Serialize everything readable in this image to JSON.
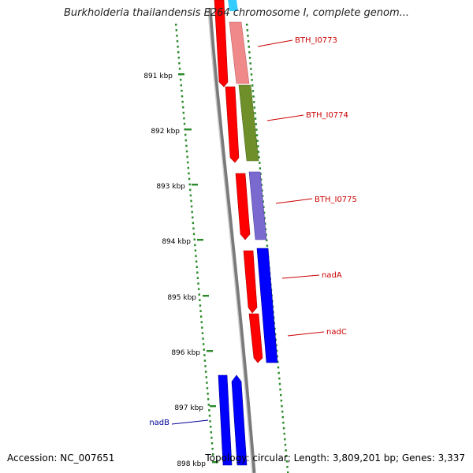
{
  "title": "Burkholderia thailandensis E264 chromosome I, complete genom...",
  "footer": {
    "accession": "Accession: NC_007651",
    "summary": "Topology: circular; Length: 3,809,201 bp; Genes: 3,337"
  },
  "scale_ticks": [
    "891 kbp",
    "892 kbp",
    "893 kbp",
    "894 kbp",
    "895 kbp",
    "896 kbp",
    "897 kbp",
    "898 kbp"
  ],
  "gene_labels": [
    {
      "text": "BTH_I0773",
      "color": "#cc0000"
    },
    {
      "text": "BTH_I0774",
      "color": "#cc0000"
    },
    {
      "text": "BTH_I0775",
      "color": "#cc0000"
    },
    {
      "text": "nadA",
      "color": "#cc0000"
    },
    {
      "text": "nadC",
      "color": "#cc0000"
    },
    {
      "text": "nadB",
      "color": "#000099"
    }
  ],
  "colors": {
    "backbone": "#808080",
    "tick": "#2a8a2a",
    "red": "#ff0000",
    "salmon": "#f08a8a",
    "olive": "#6f8f2a",
    "slate": "#7a6ad0",
    "blue": "#0000ff",
    "cyan": "#33ccff"
  }
}
